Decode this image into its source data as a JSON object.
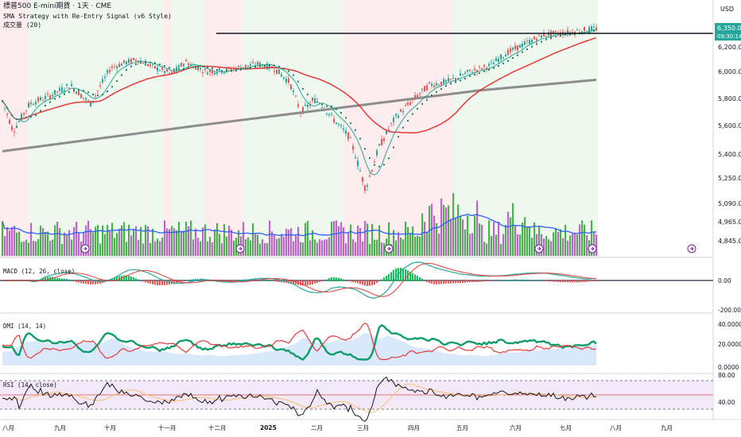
{
  "header": {
    "symbol_line": "標普500 E-mini期貨 · 1天 · CME",
    "strategy_line": "SMA Strategy with Re-Entry Signal (v6 Style)",
    "volume_line": "成交量 (20)",
    "currency": "USD"
  },
  "price_scale": {
    "ticks": [
      "6,200.00",
      "6,000.00",
      "5,800.00",
      "5,600.00",
      "5,400.00",
      "5,250.00",
      "5,090.00",
      "4,965.00",
      "4,845.00"
    ],
    "last_price": "6,350.00",
    "countdown": "09:30:14"
  },
  "macd": {
    "title": "MACD (12, 26, close)",
    "ticks": [
      "0.00",
      "-200.00"
    ]
  },
  "dmi": {
    "title": "DMI (14, 14)",
    "ticks": [
      "40.0000",
      "20.0000",
      "0.0000"
    ]
  },
  "rsi": {
    "title": "RSI (14, close)",
    "ticks": [
      "80.00",
      "40.00"
    ]
  },
  "time_axis": {
    "labels": [
      "八月",
      "九月",
      "十月",
      "十一月",
      "十二月",
      "2025",
      "二月",
      "三月",
      "四月",
      "五月",
      "六月",
      "七月",
      "八月",
      "九月"
    ]
  },
  "colors": {
    "up": "#26a69a",
    "down": "#ef5350",
    "sma_fast": "#26a69a",
    "sma_mid": "#e53935",
    "sma_slow": "#8d8d8d",
    "vol_up": "#4caf50",
    "vol_down": "#ba68c8",
    "vol_ma": "#2962ff",
    "bg_green": "#e8f5e9",
    "bg_red": "#fde7e9",
    "badge": "#26a69a"
  },
  "icons": [
    "lightning-icon",
    "event-marker-icon"
  ]
}
